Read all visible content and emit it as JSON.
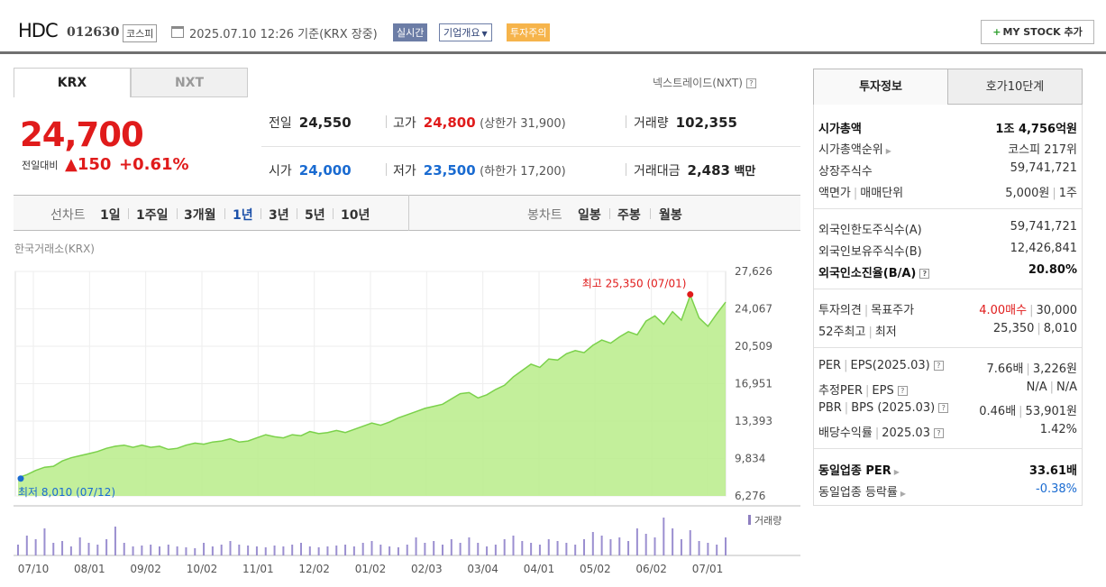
{
  "header": {
    "name": "HDC",
    "code": "012630",
    "market_badge": "코스피",
    "datetime": "2025.07.10 12:26  기준(KRX 장중)",
    "realtime": "실시간",
    "company": "기업개요",
    "caution": "투자주의",
    "mystock": "MY STOCK 추가"
  },
  "tabs": {
    "krx": "KRX",
    "nxt": "NXT"
  },
  "nxt_link": "넥스트레이드(NXT)",
  "price": {
    "current": "24,700",
    "change_label": "전일대비",
    "change": "▲150",
    "pct": "+0.61%"
  },
  "stats": {
    "prev_label": "전일",
    "prev": "24,550",
    "high_label": "고가",
    "high": "24,800",
    "upper_label": "(상한가 31,900)",
    "volume_label": "거래량",
    "volume": "102,355",
    "open_label": "시가",
    "open": "24,000",
    "low_label": "저가",
    "low": "23,500",
    "lower_label": "(하한가 17,200)",
    "amount_label": "거래대금",
    "amount": "2,483",
    "amount_unit": "백만"
  },
  "periods": {
    "line_label": "선차트",
    "line_items": [
      "1일",
      "1주일",
      "3개월",
      "1년",
      "3년",
      "5년",
      "10년"
    ],
    "active": "1년",
    "candle_label": "봉차트",
    "candle_items": [
      "일봉",
      "주봉",
      "월봉"
    ]
  },
  "source": "한국거래소(KRX)",
  "chart_data": {
    "type": "area",
    "y_ticks": [
      "27,626",
      "24,067",
      "20,509",
      "16,951",
      "13,393",
      "9,834",
      "6,276"
    ],
    "ylim": [
      6276,
      27626
    ],
    "x_ticks": [
      "07/10",
      "08/01",
      "09/02",
      "10/02",
      "11/01",
      "12/02",
      "01/02",
      "02/03",
      "03/04",
      "04/01",
      "05/02",
      "06/02",
      "07/01"
    ],
    "max_label": "최고 25,350 (07/01)",
    "min_label": "최저 8,010 (07/12)",
    "volume_label": "거래량",
    "values": [
      8010,
      8300,
      8700,
      9000,
      9100,
      9600,
      9900,
      10100,
      10300,
      10500,
      10800,
      11000,
      11100,
      10900,
      11100,
      10900,
      11000,
      10700,
      10800,
      11100,
      11300,
      11200,
      11400,
      11500,
      11700,
      11400,
      11500,
      11800,
      12100,
      11900,
      11800,
      12100,
      12000,
      12400,
      12200,
      12300,
      12500,
      12300,
      12600,
      12900,
      13200,
      13000,
      13300,
      13700,
      14000,
      14300,
      14600,
      14800,
      15000,
      15500,
      16000,
      16100,
      15600,
      15900,
      16400,
      16800,
      17600,
      18200,
      18800,
      18500,
      19300,
      19200,
      19800,
      20100,
      19900,
      20600,
      21100,
      20800,
      21400,
      21900,
      21600,
      22900,
      23400,
      22600,
      23800,
      23000,
      25350,
      23200,
      22400,
      23600,
      24700
    ],
    "volumes": [
      12,
      22,
      18,
      30,
      14,
      16,
      10,
      20,
      14,
      12,
      18,
      32,
      14,
      10,
      11,
      12,
      10,
      12,
      10,
      9,
      8,
      14,
      10,
      12,
      16,
      12,
      11,
      10,
      9,
      11,
      10,
      12,
      14,
      10,
      9,
      10,
      11,
      12,
      10,
      14,
      16,
      12,
      10,
      9,
      12,
      20,
      14,
      16,
      12,
      18,
      14,
      20,
      14,
      10,
      12,
      18,
      22,
      16,
      14,
      12,
      18,
      16,
      14,
      12,
      18,
      26,
      22,
      18,
      20,
      16,
      30,
      24,
      20,
      42,
      30,
      18,
      28,
      16,
      14,
      12,
      20
    ]
  },
  "right": {
    "tab1": "투자정보",
    "tab2": "호가10단계",
    "rows": {
      "mcap_l": "시가총액",
      "mcap_r": "1조 4,756억원",
      "rank_l": "시가총액순위",
      "rank_r": "코스피 217위",
      "shares_l": "상장주식수",
      "shares_r": "59,741,721",
      "par_l": "액면가",
      "par_l2": "매매단위",
      "par_r": "5,000원",
      "par_r2": "1주",
      "foreign_limit_l": "외국인한도주식수(A)",
      "foreign_limit_r": "59,741,721",
      "foreign_hold_l": "외국인보유주식수(B)",
      "foreign_hold_r": "12,426,841",
      "foreign_ratio_l": "외국인소진율(B/A)",
      "foreign_ratio_r": "20.80%",
      "opinion_l": "투자의견",
      "opinion_l2": "목표주가",
      "opinion_r": "4.00매수",
      "opinion_r2": "30,000",
      "w52_l": "52주최고",
      "w52_l2": "최저",
      "w52_r": "25,350",
      "w52_r2": "8,010",
      "per_l": "PER",
      "per_l2": "EPS(2025.03)",
      "per_r": "7.66배",
      "per_r2": "3,226원",
      "eper_l": "추정PER",
      "eper_l2": "EPS",
      "eper_r": "N/A",
      "eper_r2": "N/A",
      "pbr_l": "PBR",
      "pbr_l2": "BPS (2025.03)",
      "pbr_r": "0.46배",
      "pbr_r2": "53,901원",
      "div_l": "배당수익률",
      "div_l2": "2025.03",
      "div_r": "1.42%",
      "ind_per_l": "동일업종 PER",
      "ind_per_r": "33.61배",
      "ind_rate_l": "동일업종 등락률",
      "ind_rate_r": "-0.38%"
    }
  },
  "colors": {
    "up": "#e01b1b",
    "down": "#1a6bd1",
    "area": "#b9ec8a",
    "line": "#7bd14b"
  }
}
